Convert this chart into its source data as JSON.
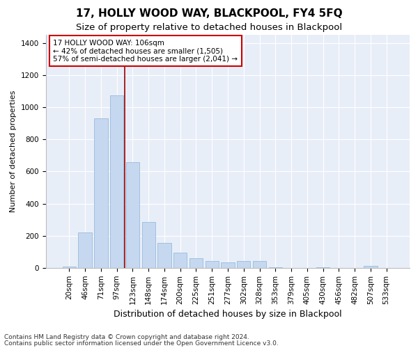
{
  "title": "17, HOLLY WOOD WAY, BLACKPOOL, FY4 5FQ",
  "subtitle": "Size of property relative to detached houses in Blackpool",
  "xlabel": "Distribution of detached houses by size in Blackpool",
  "ylabel": "Number of detached properties",
  "bar_labels": [
    "20sqm",
    "46sqm",
    "71sqm",
    "97sqm",
    "123sqm",
    "148sqm",
    "174sqm",
    "200sqm",
    "225sqm",
    "251sqm",
    "277sqm",
    "302sqm",
    "328sqm",
    "353sqm",
    "379sqm",
    "405sqm",
    "430sqm",
    "456sqm",
    "482sqm",
    "507sqm",
    "533sqm"
  ],
  "bar_values": [
    8,
    220,
    930,
    1075,
    660,
    285,
    155,
    95,
    60,
    45,
    35,
    45,
    45,
    5,
    0,
    0,
    5,
    0,
    0,
    15,
    0
  ],
  "bar_color": "#c5d8ef",
  "bar_edgecolor": "#8ab4d8",
  "figure_facecolor": "#ffffff",
  "axes_facecolor": "#e8eef8",
  "grid_color": "#ffffff",
  "vline_color": "#990000",
  "vline_x": 3.5,
  "annotation_text": "17 HOLLY WOOD WAY: 106sqm\n← 42% of detached houses are smaller (1,505)\n57% of semi-detached houses are larger (2,041) →",
  "annotation_box_edgecolor": "#cc0000",
  "annotation_box_facecolor": "#ffffff",
  "ylim": [
    0,
    1450
  ],
  "yticks": [
    0,
    200,
    400,
    600,
    800,
    1000,
    1200,
    1400
  ],
  "footnote1": "Contains HM Land Registry data © Crown copyright and database right 2024.",
  "footnote2": "Contains public sector information licensed under the Open Government Licence v3.0.",
  "title_fontsize": 11,
  "subtitle_fontsize": 9.5,
  "xlabel_fontsize": 9,
  "ylabel_fontsize": 8,
  "tick_fontsize": 7.5,
  "annot_fontsize": 7.5,
  "footnote_fontsize": 6.5
}
